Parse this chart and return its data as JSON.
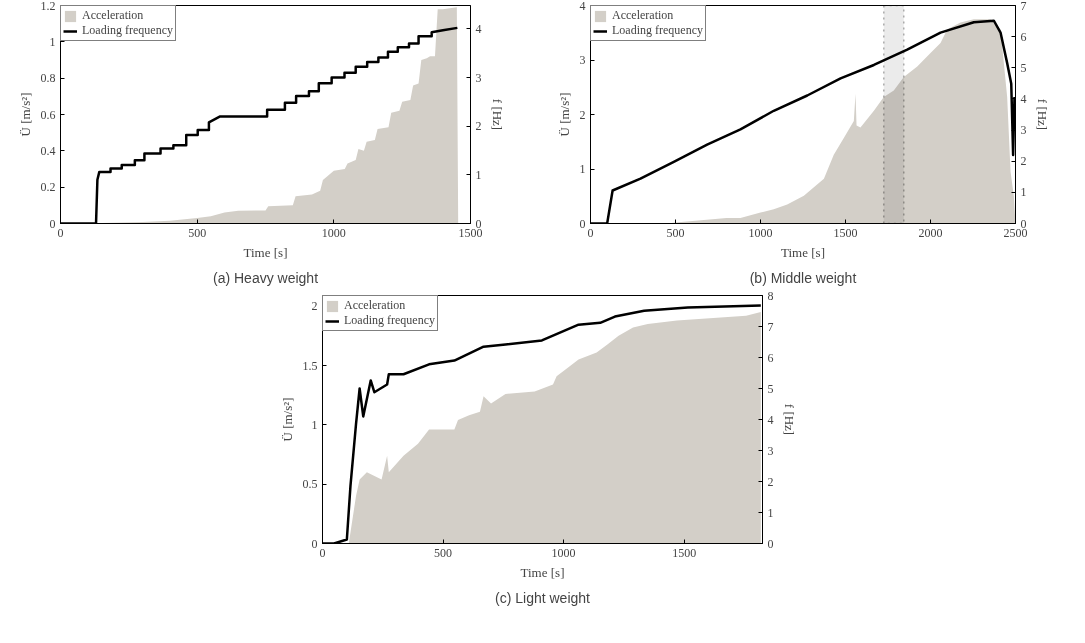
{
  "chart_data": [
    {
      "type": "area",
      "title": "(a) Heavy weight",
      "xlabel": "Time [s]",
      "ylabel": "Ü [m/s²]",
      "y2label": "f [Hz]",
      "xlim": [
        0,
        1500
      ],
      "xticks": [
        0,
        500,
        1000,
        1500
      ],
      "ylim": [
        0,
        1.2
      ],
      "yticks": [
        0,
        0.2,
        0.4,
        0.6,
        0.8,
        1,
        1.2
      ],
      "y2lim": [
        0,
        4.48
      ],
      "y2ticks": [
        0,
        1,
        2,
        3,
        4
      ],
      "legend": "top left",
      "grid": false,
      "series": [
        {
          "name": "Acceleration",
          "color": "#d3cfc8",
          "x": [
            0,
            130,
            150,
            300,
            400,
            500,
            550,
            600,
            650,
            750,
            760,
            850,
            860,
            920,
            950,
            960,
            1000,
            1040,
            1050,
            1080,
            1090,
            1110,
            1120,
            1150,
            1160,
            1200,
            1210,
            1240,
            1250,
            1280,
            1290,
            1310,
            1320,
            1340,
            1352,
            1370,
            1380,
            1399,
            1450,
            1455
          ],
          "values": [
            0,
            0,
            0.003,
            0.008,
            0.015,
            0.03,
            0.04,
            0.06,
            0.07,
            0.072,
            0.095,
            0.1,
            0.15,
            0.16,
            0.18,
            0.24,
            0.29,
            0.3,
            0.33,
            0.35,
            0.41,
            0.4,
            0.45,
            0.46,
            0.52,
            0.53,
            0.61,
            0.62,
            0.67,
            0.68,
            0.76,
            0.77,
            0.9,
            0.91,
            0.92,
            0.92,
            1.18,
            1.18,
            1.19,
            0
          ]
        },
        {
          "name": "Loading frequency",
          "type": "line",
          "axis": "y2",
          "color": "#000000",
          "x": [
            0,
            130,
            135,
            142,
            183,
            183,
            224,
            224,
            272,
            272,
            307,
            307,
            366,
            366,
            413,
            413,
            460,
            460,
            502,
            502,
            543,
            543,
            584,
            756,
            756,
            821,
            821,
            862,
            862,
            909,
            909,
            945,
            945,
            992,
            992,
            1039,
            1039,
            1080,
            1080,
            1122,
            1122,
            1163,
            1163,
            1198,
            1198,
            1234,
            1234,
            1275,
            1275,
            1310,
            1310,
            1358,
            1358,
            1399,
            1452
          ],
          "values": [
            0,
            0,
            0.9,
            1.06,
            1.06,
            1.13,
            1.13,
            1.2,
            1.2,
            1.3,
            1.3,
            1.44,
            1.44,
            1.54,
            1.54,
            1.61,
            1.61,
            1.82,
            1.82,
            1.92,
            1.92,
            2.08,
            2.2,
            2.2,
            2.34,
            2.34,
            2.48,
            2.48,
            2.62,
            2.62,
            2.72,
            2.72,
            2.88,
            2.88,
            3,
            3,
            3.1,
            3.1,
            3.22,
            3.22,
            3.32,
            3.32,
            3.41,
            3.41,
            3.53,
            3.53,
            3.62,
            3.62,
            3.7,
            3.7,
            3.85,
            3.85,
            3.93,
            3.97,
            4.02
          ]
        }
      ]
    },
    {
      "type": "area",
      "title": "(b) Middle weight",
      "xlabel": "Time [s]",
      "ylabel": "Ü [m/s²]",
      "y2label": "f [Hz]",
      "xlim": [
        0,
        2500
      ],
      "xticks": [
        0,
        500,
        1000,
        1500,
        2000,
        2500
      ],
      "ylim": [
        0,
        4
      ],
      "yticks": [
        0,
        1,
        2,
        3,
        4
      ],
      "y2lim": [
        0,
        7
      ],
      "y2ticks": [
        0,
        1,
        2,
        3,
        4,
        5,
        6,
        7
      ],
      "legend": "top left",
      "grid": false,
      "bands": [
        {
          "axis": "x",
          "from": 1725,
          "to": 1843,
          "color": "#000000"
        }
      ],
      "series": [
        {
          "name": "Acceleration",
          "color": "#d3cfc8",
          "x": [
            0,
            450,
            500,
            800,
            882,
            1000,
            1078,
            1157,
            1255,
            1373,
            1431,
            1490,
            1549,
            1559,
            1565,
            1588,
            1667,
            1725,
            1784,
            1843,
            1922,
            2000,
            2059,
            2098,
            2176,
            2255,
            2353,
            2412,
            2451,
            2471,
            2490,
            2500
          ],
          "values": [
            0,
            0,
            0.02,
            0.1,
            0.1,
            0.2,
            0.26,
            0.35,
            0.51,
            0.82,
            1.26,
            1.57,
            1.88,
            2.38,
            1.8,
            1.76,
            2.07,
            2.32,
            2.44,
            2.69,
            2.88,
            3.13,
            3.31,
            3.56,
            3.69,
            3.75,
            3.75,
            3.56,
            2.32,
            0.95,
            0.51,
            0
          ]
        },
        {
          "name": "Loading frequency",
          "type": "line",
          "axis": "y2",
          "color": "#000000",
          "x": [
            0,
            98,
            130,
            294,
            490,
            686,
            882,
            1078,
            1275,
            1471,
            1667,
            1863,
            2059,
            2255,
            2373,
            2412,
            2451,
            2475,
            2486,
            2494
          ],
          "values": [
            0,
            0,
            1.06,
            1.44,
            1.98,
            2.53,
            3.02,
            3.62,
            4.11,
            4.66,
            5.09,
            5.58,
            6.13,
            6.46,
            6.51,
            6.13,
            5.15,
            4.49,
            2.2,
            4.06
          ]
        }
      ]
    },
    {
      "type": "area",
      "title": "(c) Light weight",
      "xlabel": "Time [s]",
      "ylabel": "Ü [m/s²]",
      "y2label": "f [Hz]",
      "xlim": [
        0,
        1825
      ],
      "xticks": [
        0,
        500,
        1000,
        1500
      ],
      "ylim": [
        0,
        2.09
      ],
      "yticks": [
        0,
        0.5,
        1,
        1.5,
        2
      ],
      "y2lim": [
        0,
        8
      ],
      "y2ticks": [
        0,
        1,
        2,
        3,
        4,
        5,
        6,
        7,
        8
      ],
      "legend": "top left",
      "grid": false,
      "series": [
        {
          "name": "Acceleration",
          "color": "#d3cfc8",
          "x": [
            0,
            109,
            139,
            154,
            184,
            245,
            268,
            275,
            336,
            396,
            442,
            547,
            562,
            608,
            653,
            668,
            699,
            759,
            880,
            956,
            971,
            1016,
            1062,
            1137,
            1183,
            1228,
            1288,
            1349,
            1470,
            1757,
            1818
          ],
          "values": [
            0,
            0,
            0.4,
            0.54,
            0.6,
            0.54,
            0.74,
            0.6,
            0.74,
            0.84,
            0.96,
            0.96,
            1.04,
            1.08,
            1.11,
            1.24,
            1.18,
            1.26,
            1.28,
            1.34,
            1.41,
            1.48,
            1.55,
            1.61,
            1.68,
            1.75,
            1.82,
            1.85,
            1.88,
            1.92,
            1.95
          ]
        },
        {
          "name": "Loading frequency",
          "type": "line",
          "axis": "y2",
          "color": "#000000",
          "x": [
            0,
            48,
            101,
            116,
            139,
            154,
            169,
            200,
            215,
            268,
            275,
            336,
            442,
            547,
            668,
            759,
            910,
            1062,
            1152,
            1213,
            1334,
            1515,
            1818
          ],
          "values": [
            0,
            0,
            0.13,
            1.86,
            3.85,
            5,
            4.1,
            5.26,
            4.88,
            5.13,
            5.46,
            5.46,
            5.78,
            5.9,
            6.35,
            6.42,
            6.55,
            7.06,
            7.12,
            7.32,
            7.51,
            7.61,
            7.68
          ]
        }
      ]
    }
  ]
}
